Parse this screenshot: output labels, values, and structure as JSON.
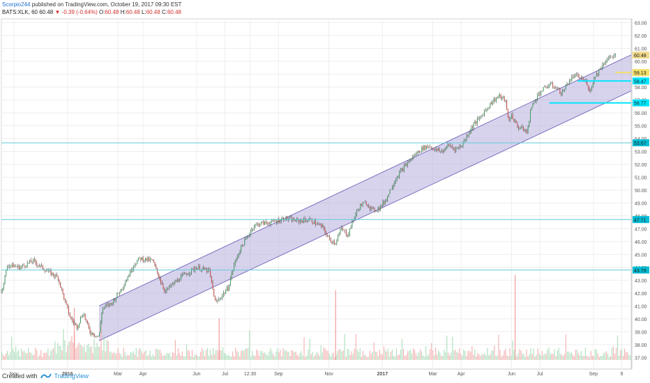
{
  "header": {
    "author": "Scorpio244",
    "published_text": "published on TradingView.com, October 19, 2017 09:30 EST",
    "symbol": "BATS:XLK, 60",
    "last": "60.48",
    "change_arrow": "▼",
    "change": "-0.39 (-0.64%)",
    "o_label": "O:",
    "o": "60.48",
    "h_label": "H:",
    "h": "60.48",
    "l_label": "L:",
    "l": "60.48",
    "c_label": "C:",
    "c": "60.48"
  },
  "footer": {
    "created_with": "Created with",
    "brand": "TradingView"
  },
  "chart_data": {
    "type": "line",
    "subtype": "candlestick-with-volume",
    "ylim": [
      36.8,
      63.3
    ],
    "y_ticks": [
      "63.00",
      "62.00",
      "61.00",
      "60.00",
      "59.00",
      "58.00",
      "57.00",
      "56.00",
      "55.00",
      "54.00",
      "53.00",
      "52.00",
      "51.00",
      "50.00",
      "49.00",
      "48.00",
      "47.00",
      "46.00",
      "45.00",
      "44.00",
      "43.00",
      "42.00",
      "41.00",
      "40.00",
      "39.00",
      "38.00",
      "37.00"
    ],
    "x_ticks": [
      "Nov",
      "2016",
      "Mar",
      "Apr",
      "Jun",
      "Jul",
      "12:30",
      "Sep",
      "Nov",
      "2017",
      "Mar",
      "Apr",
      "Jun",
      "Jul",
      "Sep",
      "9"
    ],
    "x_tick_pos": [
      0.02,
      0.105,
      0.185,
      0.225,
      0.31,
      0.355,
      0.395,
      0.44,
      0.52,
      0.605,
      0.685,
      0.73,
      0.81,
      0.855,
      0.94,
      0.985
    ],
    "price_labels": [
      {
        "value": 60.48,
        "text": "60.48",
        "color": "#f0d98a"
      },
      {
        "value": 59.13,
        "text": "59.13",
        "color": "#f3e06a"
      },
      {
        "value": 58.47,
        "text": "58.47",
        "color": "#00e5ff"
      },
      {
        "value": 56.77,
        "text": "56.77",
        "color": "#00e5ff"
      },
      {
        "value": 53.67,
        "text": "53.67",
        "color": "#00bcd4"
      },
      {
        "value": 47.71,
        "text": "47.71",
        "color": "#00bcd4"
      },
      {
        "value": 43.79,
        "text": "43.79",
        "color": "#00bcd4"
      }
    ],
    "horizontal_lines": [
      {
        "value": 53.67,
        "x_from": 0.0,
        "color": "#5fc9d9"
      },
      {
        "value": 47.71,
        "x_from": 0.0,
        "color": "#5fc9d9"
      },
      {
        "value": 43.79,
        "x_from": 0.0,
        "color": "#5fc9d9"
      },
      {
        "value": 58.47,
        "x_from": 0.915,
        "color": "#00e5ff"
      },
      {
        "value": 56.77,
        "x_from": 0.87,
        "color": "#00e5ff"
      },
      {
        "value": 59.13,
        "x_from": 0.975,
        "color": "#f3e06a"
      }
    ],
    "channel": {
      "upper": [
        [
          0.155,
          41.0
        ],
        [
          1.0,
          60.5
        ]
      ],
      "lower": [
        [
          0.155,
          38.3
        ],
        [
          1.0,
          57.7
        ]
      ],
      "fill": "#b7aede",
      "stroke": "#7a6fbf"
    },
    "price_path": [
      [
        0.0,
        42.1
      ],
      [
        0.01,
        44.2
      ],
      [
        0.03,
        44.0
      ],
      [
        0.05,
        44.5
      ],
      [
        0.07,
        43.8
      ],
      [
        0.09,
        43.2
      ],
      [
        0.1,
        41.5
      ],
      [
        0.11,
        40.0
      ],
      [
        0.12,
        39.4
      ],
      [
        0.13,
        40.5
      ],
      [
        0.14,
        39.0
      ],
      [
        0.155,
        38.6
      ],
      [
        0.16,
        40.8
      ],
      [
        0.175,
        41.2
      ],
      [
        0.19,
        42.3
      ],
      [
        0.2,
        43.2
      ],
      [
        0.21,
        44.2
      ],
      [
        0.22,
        44.7
      ],
      [
        0.24,
        44.5
      ],
      [
        0.25,
        43.3
      ],
      [
        0.26,
        42.1
      ],
      [
        0.27,
        42.6
      ],
      [
        0.29,
        43.4
      ],
      [
        0.31,
        44.0
      ],
      [
        0.33,
        43.7
      ],
      [
        0.34,
        41.2
      ],
      [
        0.35,
        41.8
      ],
      [
        0.36,
        42.4
      ],
      [
        0.37,
        44.3
      ],
      [
        0.38,
        45.5
      ],
      [
        0.39,
        46.3
      ],
      [
        0.4,
        47.2
      ],
      [
        0.41,
        47.4
      ],
      [
        0.43,
        47.5
      ],
      [
        0.45,
        47.8
      ],
      [
        0.47,
        47.6
      ],
      [
        0.49,
        47.7
      ],
      [
        0.51,
        47.1
      ],
      [
        0.52,
        46.2
      ],
      [
        0.53,
        45.9
      ],
      [
        0.54,
        47.0
      ],
      [
        0.55,
        46.5
      ],
      [
        0.56,
        47.9
      ],
      [
        0.57,
        48.8
      ],
      [
        0.58,
        49.0
      ],
      [
        0.59,
        48.4
      ],
      [
        0.6,
        48.6
      ],
      [
        0.61,
        49.2
      ],
      [
        0.62,
        50.3
      ],
      [
        0.63,
        51.2
      ],
      [
        0.64,
        51.8
      ],
      [
        0.65,
        52.4
      ],
      [
        0.66,
        52.9
      ],
      [
        0.67,
        53.3
      ],
      [
        0.68,
        53.4
      ],
      [
        0.69,
        53.1
      ],
      [
        0.7,
        53.0
      ],
      [
        0.71,
        53.5
      ],
      [
        0.72,
        53.2
      ],
      [
        0.73,
        53.4
      ],
      [
        0.74,
        54.3
      ],
      [
        0.75,
        55.1
      ],
      [
        0.76,
        55.6
      ],
      [
        0.77,
        56.3
      ],
      [
        0.78,
        56.9
      ],
      [
        0.79,
        57.3
      ],
      [
        0.8,
        57.0
      ],
      [
        0.805,
        55.4
      ],
      [
        0.81,
        55.8
      ],
      [
        0.82,
        54.9
      ],
      [
        0.83,
        54.7
      ],
      [
        0.835,
        54.4
      ],
      [
        0.84,
        56.2
      ],
      [
        0.85,
        57.3
      ],
      [
        0.86,
        57.8
      ],
      [
        0.87,
        58.2
      ],
      [
        0.88,
        58.0
      ],
      [
        0.89,
        57.5
      ],
      [
        0.9,
        58.4
      ],
      [
        0.91,
        58.9
      ],
      [
        0.92,
        58.7
      ],
      [
        0.93,
        58.3
      ],
      [
        0.935,
        57.6
      ],
      [
        0.94,
        58.6
      ],
      [
        0.95,
        59.4
      ],
      [
        0.96,
        60.1
      ],
      [
        0.97,
        60.4
      ],
      [
        0.975,
        60.48
      ]
    ],
    "grid": true,
    "volume": true
  }
}
